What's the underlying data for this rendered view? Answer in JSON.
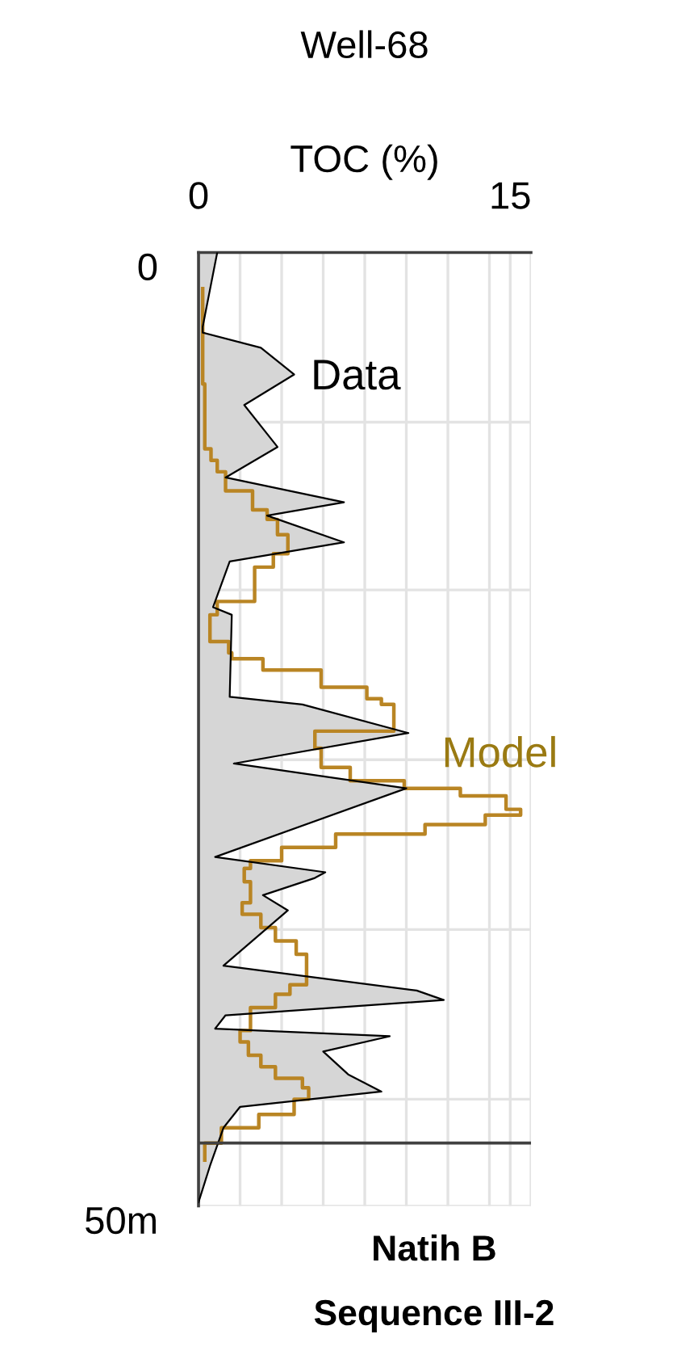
{
  "chart_data": {
    "type": "area",
    "orientation": "horizontal",
    "title": "Well-68",
    "xlabel": "TOC (%)",
    "xlim": [
      0,
      16
    ],
    "xticks": [
      0,
      {
        "value": 2,
        "label": null
      },
      {
        "value": 4,
        "label": null
      },
      {
        "value": 6,
        "label": null
      },
      {
        "value": 8,
        "label": null
      },
      {
        "value": 10,
        "label": null
      },
      {
        "value": 12,
        "label": null
      },
      {
        "value": 14,
        "label": null
      },
      15,
      {
        "value": 16,
        "label": null
      }
    ],
    "ylim": [
      50,
      0
    ],
    "yticks": [
      0,
      {
        "value": 8.9,
        "label": null
      },
      {
        "value": 17.7,
        "label": null
      },
      {
        "value": 26.6,
        "label": null
      },
      {
        "value": 35.5,
        "label": null
      },
      {
        "value": 44.4,
        "label": null
      },
      {
        "value": 50,
        "label": "50m"
      }
    ],
    "grid": true,
    "ref_lines": [
      {
        "axis": "y",
        "value": 46.7,
        "label": null,
        "color": "#404040"
      }
    ],
    "series": [
      {
        "name": "Data",
        "color": "#000000",
        "x": [
          0,
          3.9,
          4.2,
          5.0,
          6.4,
          8.0,
          10.2,
          11.8,
          13.1,
          13.8,
          15.2,
          16.2,
          18.6,
          19.0,
          23.3,
          23.7,
          25.2,
          26.8,
          28.1,
          31.7,
          32.5,
          32.8,
          33.7,
          34.5,
          37.4,
          38.7,
          39.2,
          40.0,
          40.7,
          41.1,
          41.9,
          43.1,
          44.0,
          44.8,
          45.9,
          47.9,
          49.8
        ],
        "values": [
          0.9,
          0.2,
          0.2,
          3.0,
          4.6,
          2.2,
          3.8,
          1.3,
          7.0,
          3.3,
          7.0,
          1.5,
          0.7,
          1.6,
          1.5,
          5.0,
          10.1,
          1.7,
          10.0,
          0.8,
          6.1,
          5.6,
          3.1,
          4.3,
          1.2,
          10.5,
          11.8,
          1.3,
          0.8,
          9.2,
          6.0,
          7.2,
          8.8,
          2.0,
          1.2,
          0.55,
          0
        ]
      },
      {
        "name": "Model",
        "type": "step",
        "color": "#b98524",
        "x": [
          1.9,
          6.9,
          10.3,
          10.9,
          11.5,
          12.5,
          13.5,
          14.0,
          14.8,
          15.8,
          16.5,
          18.3,
          19.0,
          20.4,
          21.0,
          21.3,
          21.9,
          22.8,
          23.4,
          23.7,
          25.1,
          26.0,
          27.0,
          27.7,
          28.1,
          28.5,
          29.2,
          29.5,
          30.0,
          30.5,
          31.2,
          31.9,
          32.3,
          33.0,
          34.1,
          34.7,
          35.4,
          36.1,
          36.8,
          38.4,
          38.9,
          39.6,
          40.8,
          41.4,
          42.1,
          42.7,
          43.3,
          43.8,
          44.4,
          45.2,
          45.9,
          46.7,
          47.6
        ],
        "values": [
          0.2,
          0.3,
          0.6,
          0.9,
          1.3,
          2.6,
          3.3,
          3.8,
          4.3,
          3.6,
          2.7,
          0.9,
          0.55,
          1.45,
          1.6,
          3.1,
          5.9,
          8.1,
          8.8,
          9.4,
          5.6,
          5.9,
          7.3,
          9.9,
          12.6,
          14.8,
          15.5,
          13.8,
          10.9,
          6.6,
          4.0,
          2.5,
          2.2,
          2.5,
          2.1,
          3.0,
          3.7,
          4.7,
          5.2,
          4.4,
          3.7,
          2.5,
          2.0,
          2.4,
          3.0,
          3.7,
          5.0,
          5.3,
          4.6,
          2.9,
          1.1,
          0.3,
          0.3
        ]
      }
    ],
    "annotations": [
      "Natih B",
      "Sequence III-2"
    ]
  }
}
